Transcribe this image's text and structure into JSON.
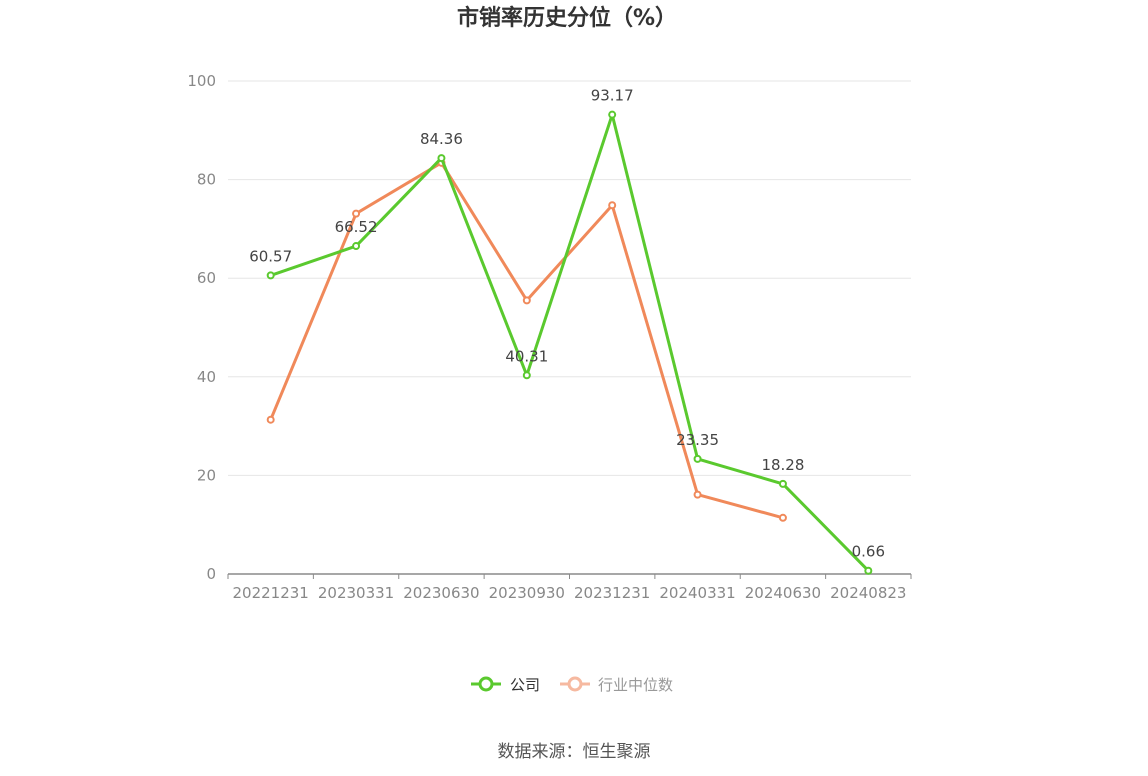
{
  "chart_data": {
    "type": "line",
    "title": "市销率历史分位（%）",
    "categories": [
      "20221231",
      "20230331",
      "20230630",
      "20230930",
      "20231231",
      "20240331",
      "20240630",
      "20240823"
    ],
    "ylim": [
      0,
      100
    ],
    "yticks": [
      0,
      20,
      40,
      60,
      80,
      100
    ],
    "grid": true,
    "legend_position": "bottom",
    "series": [
      {
        "name": "公司",
        "color": "#5ac92e",
        "values": [
          60.57,
          66.52,
          84.36,
          40.31,
          93.17,
          23.35,
          18.28,
          0.66
        ],
        "labels": [
          "60.57",
          "66.52",
          "84.36",
          "40.31",
          "93.17",
          "23.35",
          "18.28",
          "0.66"
        ]
      },
      {
        "name": "行业中位数",
        "color": "#f0895a",
        "legend_color": "#f6b9a0",
        "values": [
          31.3,
          73.1,
          83.4,
          55.5,
          74.8,
          16.1,
          11.4,
          null
        ]
      }
    ]
  },
  "footer": {
    "source": "数据来源：恒生聚源"
  }
}
